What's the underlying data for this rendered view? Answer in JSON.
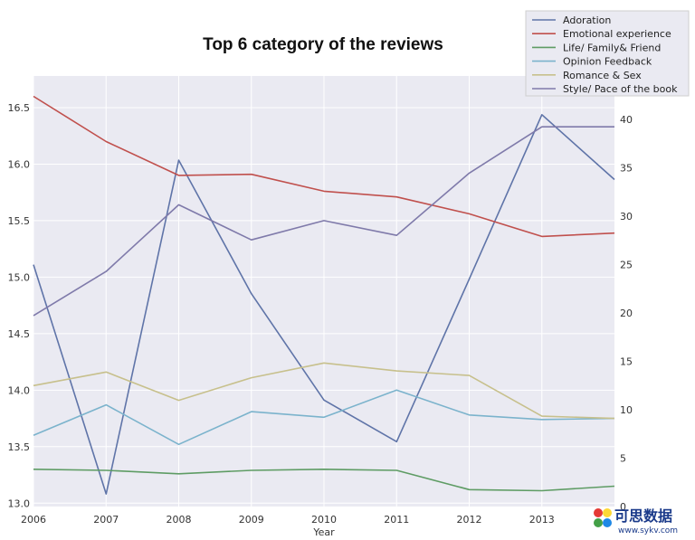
{
  "chart_data": {
    "type": "line",
    "title": "Top 6 category of the reviews",
    "xlabel": "Year",
    "x": [
      2006,
      2007,
      2008,
      2009,
      2010,
      2011,
      2012,
      2013,
      2014
    ],
    "x_ticks": [
      "2006",
      "2007",
      "2008",
      "2009",
      "2010",
      "2011",
      "2012",
      "2013"
    ],
    "xlim": [
      2006,
      2014
    ],
    "y_left": {
      "ylim": [
        12.97,
        16.78
      ],
      "ticks": [
        "13.0",
        "13.5",
        "14.0",
        "14.5",
        "15.0",
        "15.5",
        "16.0",
        "16.5"
      ]
    },
    "y_right": {
      "ylim": [
        0,
        44.5
      ],
      "ticks": [
        "0",
        "5",
        "10",
        "15",
        "20",
        "25",
        "30",
        "35",
        "40"
      ]
    },
    "grid": true,
    "legend_position": "top-right",
    "series": [
      {
        "name": "Adoration",
        "color": "#5f74a8",
        "axis": "right",
        "values": [
          25,
          1.3,
          35.8,
          22,
          11,
          6.7,
          23.5,
          40.5,
          33.8
        ]
      },
      {
        "name": "Emotional experience",
        "color": "#c0504d",
        "axis": "left",
        "values": [
          16.6,
          16.2,
          15.9,
          15.91,
          15.76,
          15.71,
          15.56,
          15.36,
          15.39
        ]
      },
      {
        "name": "Life/ Family& Friend",
        "color": "#5e9c64",
        "axis": "left",
        "values": [
          13.3,
          13.29,
          13.26,
          13.29,
          13.3,
          13.29,
          13.12,
          13.11,
          13.15
        ]
      },
      {
        "name": "Opinion Feedback",
        "color": "#7bb3cc",
        "axis": "left",
        "values": [
          13.6,
          13.87,
          13.52,
          13.81,
          13.76,
          14.0,
          13.78,
          13.74,
          13.75
        ]
      },
      {
        "name": "Romance & Sex",
        "color": "#c7c08c",
        "axis": "left",
        "values": [
          14.04,
          14.16,
          13.91,
          14.11,
          14.24,
          14.17,
          14.13,
          13.77,
          13.75
        ]
      },
      {
        "name": "Style/ Pace of the book",
        "color": "#7f7aaa",
        "axis": "left",
        "values": [
          14.66,
          15.05,
          15.64,
          15.33,
          15.5,
          15.37,
          15.92,
          16.33,
          16.33
        ]
      }
    ]
  },
  "watermark": {
    "text": "可思数据",
    "url": "www.sykv.com"
  }
}
